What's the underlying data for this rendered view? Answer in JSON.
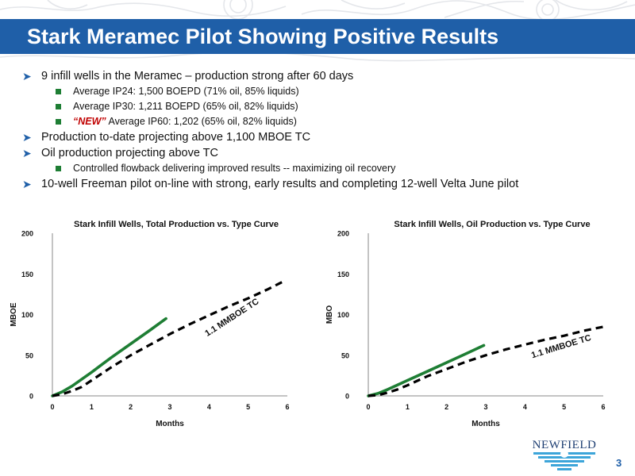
{
  "slide": {
    "title": "Stark Meramec Pilot Showing Positive Results",
    "page_number": "3",
    "logo_text": "NEWFIELD",
    "colors": {
      "title_bar": "#1f5fa8",
      "accent_green": "#1e7e34",
      "new_red": "#c00000"
    }
  },
  "bullets": [
    {
      "text": "9 infill wells in the Meramec – production strong after 60 days"
    },
    {
      "text": "Average IP24: 1,500 BOEPD (71% oil, 85% liquids)"
    },
    {
      "text": "Average IP30: 1,211 BOEPD (65% oil, 82% liquids)"
    },
    {
      "highlight": "“NEW”",
      "text": " Average IP60: 1,202 (65% oil, 82% liquids)"
    },
    {
      "text": "Production to-date projecting above 1,100 MBOE TC"
    },
    {
      "text": "Oil production projecting above TC"
    },
    {
      "text": "Controlled flowback delivering improved results -- maximizing oil recovery"
    },
    {
      "text": "10-well Freeman pilot on-line with strong, early results and completing 12-well Velta June pilot"
    }
  ],
  "chart_data": [
    {
      "type": "line",
      "title": "Stark Infill Wells, Total Production vs. Type Curve",
      "xlabel": "Months",
      "ylabel": "MBOE",
      "xlim": [
        0,
        6
      ],
      "ylim": [
        0,
        200
      ],
      "xticks": [
        "0",
        "1",
        "2",
        "3",
        "4",
        "5",
        "6"
      ],
      "yticks": [
        "0",
        "50",
        "100",
        "150",
        "200"
      ],
      "grid": false,
      "series": [
        {
          "name": "",
          "style": "solid",
          "color": "#1e7e34",
          "x": [
            0,
            0.25,
            0.5,
            1,
            1.5,
            2,
            2.5,
            2.9
          ],
          "y": [
            0,
            5,
            12,
            29,
            47,
            64,
            81,
            95
          ]
        },
        {
          "name": "",
          "style": "dashed",
          "color": "#000000",
          "x": [
            0,
            0.25,
            0.5,
            0.75,
            1,
            1.5,
            2,
            2.5,
            3,
            3.5,
            4,
            4.5,
            5,
            5.5,
            5.95
          ],
          "y": [
            0,
            2,
            6,
            11,
            19,
            35,
            50,
            63,
            76,
            88,
            99,
            110,
            120,
            131,
            142
          ]
        }
      ],
      "annotations": [
        "1.1 MMBOE TC"
      ]
    },
    {
      "type": "line",
      "title": "Stark Infill Wells, Oil Production vs. Type Curve",
      "xlabel": "Months",
      "ylabel": "MBO",
      "xlim": [
        0,
        6
      ],
      "ylim": [
        0,
        200
      ],
      "xticks": [
        "0",
        "1",
        "2",
        "3",
        "4",
        "5",
        "6"
      ],
      "yticks": [
        "0",
        "50",
        "100",
        "150",
        "200"
      ],
      "grid": false,
      "series": [
        {
          "name": "",
          "style": "solid",
          "color": "#1e7e34",
          "x": [
            0,
            0.25,
            0.5,
            1,
            1.5,
            2,
            2.5,
            2.95
          ],
          "y": [
            0,
            3,
            8,
            19,
            30,
            41,
            52,
            62
          ]
        },
        {
          "name": "",
          "style": "dashed",
          "color": "#000000",
          "x": [
            0,
            0.25,
            0.5,
            0.75,
            1,
            1.5,
            2,
            2.5,
            3,
            3.5,
            4,
            4.5,
            5,
            5.5,
            6
          ],
          "y": [
            0,
            1,
            4,
            8,
            13,
            24,
            33,
            42,
            50,
            57,
            63,
            69,
            74,
            80,
            85
          ]
        }
      ],
      "annotations": [
        "1.1 MMBOE TC"
      ]
    }
  ]
}
